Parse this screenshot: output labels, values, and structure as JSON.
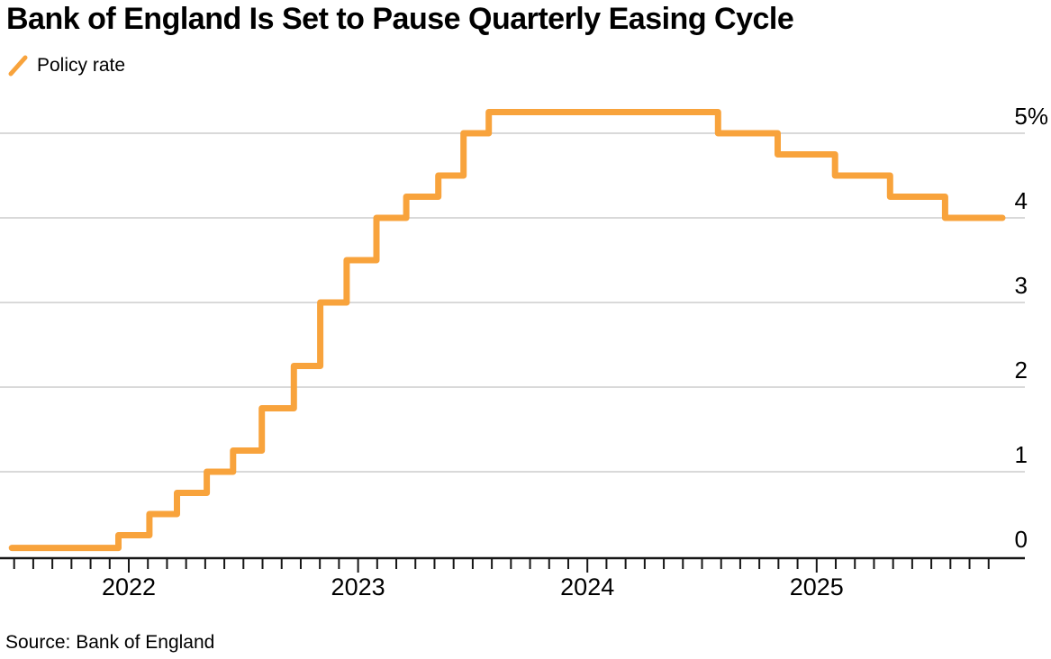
{
  "chart_data": {
    "type": "line",
    "step_style": "step-after",
    "title": "Bank of England Is Set to Pause Quarterly Easing Cycle",
    "source": "Source: Bank of England",
    "legend": {
      "position": "top-left",
      "entries": [
        {
          "label": "Policy rate",
          "color": "#F8A33C"
        }
      ]
    },
    "colors": {
      "line": "#F8A33C",
      "grid": "#D9D9D9",
      "axis": "#161616",
      "text": "#000000"
    },
    "grid": "horizontal",
    "y_axis": {
      "side": "right",
      "unit": "%",
      "ylim": [
        0,
        5.45
      ],
      "ticks": [
        {
          "value": 0,
          "label": "0"
        },
        {
          "value": 1,
          "label": "1"
        },
        {
          "value": 2,
          "label": "2"
        },
        {
          "value": 3,
          "label": "3"
        },
        {
          "value": 4,
          "label": "4"
        },
        {
          "value": 5,
          "label": "5%"
        }
      ]
    },
    "x_axis": {
      "xlim": [
        2021.44,
        2025.9
      ],
      "minor_tick_interval": "month",
      "first_tick": [
        2021,
        7
      ],
      "last_tick": [
        2025,
        10
      ],
      "year_ticks": [
        2022,
        2023,
        2024,
        2025
      ]
    },
    "line_end_x": 2025.81,
    "series": [
      {
        "name": "Policy rate",
        "color": "#F8A33C",
        "unit": "%",
        "points": [
          {
            "date": "Jul 2021",
            "x": 2021.49,
            "rate": 0.1
          },
          {
            "date": "Dec 2021",
            "x": 2021.955,
            "rate": 0.25
          },
          {
            "date": "Feb 2022",
            "x": 2022.09,
            "rate": 0.5
          },
          {
            "date": "Mar 2022",
            "x": 2022.21,
            "rate": 0.75
          },
          {
            "date": "May 2022",
            "x": 2022.34,
            "rate": 1.0
          },
          {
            "date": "Jun 2022",
            "x": 2022.455,
            "rate": 1.25
          },
          {
            "date": "Aug 2022",
            "x": 2022.58,
            "rate": 1.75
          },
          {
            "date": "Sep 2022",
            "x": 2022.72,
            "rate": 2.25
          },
          {
            "date": "Nov 2022",
            "x": 2022.835,
            "rate": 3.0
          },
          {
            "date": "Dec 2022",
            "x": 2022.95,
            "rate": 3.5
          },
          {
            "date": "Feb 2023",
            "x": 2023.08,
            "rate": 4.0
          },
          {
            "date": "Mar 2023",
            "x": 2023.21,
            "rate": 4.25
          },
          {
            "date": "May 2023",
            "x": 2023.35,
            "rate": 4.5
          },
          {
            "date": "Jun 2023",
            "x": 2023.46,
            "rate": 5.0
          },
          {
            "date": "Aug 2023",
            "x": 2023.57,
            "rate": 5.25
          },
          {
            "date": "Aug 2024",
            "x": 2024.57,
            "rate": 5.0
          },
          {
            "date": "Nov 2024",
            "x": 2024.83,
            "rate": 4.75
          },
          {
            "date": "Feb 2025",
            "x": 2025.08,
            "rate": 4.5
          },
          {
            "date": "May 2025",
            "x": 2025.32,
            "rate": 4.25
          },
          {
            "date": "Aug 2025",
            "x": 2025.56,
            "rate": 4.0
          }
        ]
      }
    ]
  }
}
